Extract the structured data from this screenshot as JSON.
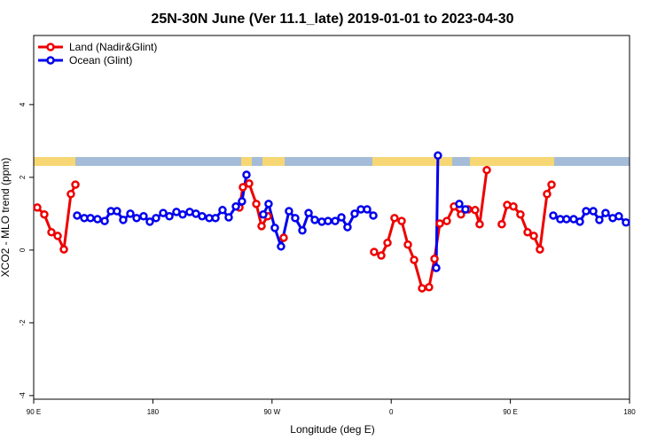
{
  "chart_data": {
    "type": "line",
    "title": "25N-30N June (Ver 11.1_late)   2019-01-01 to 2023-04-30",
    "x_label": "Longitude (deg E)",
    "y_label": "XCO2 - MLO trend (ppm)",
    "xlim": [
      90,
      540
    ],
    "xticks": [
      {
        "value": 90,
        "label": "90 E"
      },
      180,
      {
        "value": 270,
        "label": "90 W"
      },
      {
        "value": 360,
        "label": "0"
      },
      {
        "value": 450,
        "label": "90 E"
      },
      {
        "value": 540,
        "label": "180"
      }
    ],
    "ylim": [
      -4.1,
      5.9
    ],
    "yticks": [
      -4,
      -2,
      0,
      2,
      4
    ],
    "legend": "top-left",
    "series": [
      {
        "name": "Land (Nadir&Glint)",
        "color": "#ee0000",
        "x": [
          92.7,
          98.0,
          103.4,
          108.1,
          112.8,
          118.1,
          121.5,
          null,
          245.4,
          248.0,
          252.7,
          258.1,
          262.1,
          266.8,
          null,
          278.8,
          null,
          347.1,
          352.5,
          357.2,
          362.5,
          367.9,
          372.6,
          377.3,
          383.3,
          388.6,
          392.7,
          396.7,
          402.0,
          407.4,
          412.7,
          418.1,
          423.4,
          426.8,
          432.2,
          null,
          443.5,
          447.6,
          452.3,
          457.6,
          463.0,
          467.7,
          472.3,
          477.7,
          481.1
        ],
        "values": [
          1.17,
          0.98,
          0.49,
          0.39,
          0.02,
          1.54,
          1.8,
          null,
          1.17,
          1.73,
          1.83,
          1.27,
          0.66,
          0.93,
          null,
          0.34,
          null,
          -0.05,
          -0.15,
          0.2,
          0.88,
          0.8,
          0.15,
          -0.27,
          -1.05,
          -1.02,
          -0.24,
          0.73,
          0.8,
          1.2,
          0.98,
          1.12,
          1.1,
          0.71,
          2.2,
          null,
          0.71,
          1.24,
          1.2,
          0.98,
          0.49,
          0.39,
          0.02,
          1.54,
          1.8
        ]
      },
      {
        "name": "Ocean (Glint)",
        "color": "#0000ee",
        "x": [
          122.8,
          128.2,
          132.9,
          138.2,
          143.6,
          148.3,
          152.9,
          157.6,
          163.0,
          167.7,
          173.0,
          177.7,
          182.4,
          187.8,
          192.5,
          197.8,
          202.5,
          207.8,
          212.5,
          217.2,
          222.6,
          227.3,
          232.6,
          237.3,
          242.7,
          247.3,
          250.7,
          null,
          263.4,
          267.4,
          272.1,
          276.8,
          282.8,
          287.5,
          292.9,
          297.6,
          302.3,
          307.6,
          312.3,
          317.7,
          322.4,
          327.0,
          332.4,
          337.1,
          341.8,
          346.5,
          null,
          394.0,
          395.3,
          null,
          411.4,
          416.1,
          null,
          482.4,
          487.7,
          492.4,
          497.8,
          502.5,
          507.2,
          512.6,
          517.2,
          521.9,
          527.3,
          531.9,
          537.3
        ],
        "values": [
          0.95,
          0.88,
          0.88,
          0.85,
          0.8,
          1.07,
          1.07,
          0.83,
          1.0,
          0.88,
          0.93,
          0.78,
          0.88,
          1.02,
          0.93,
          1.05,
          0.98,
          1.05,
          1.0,
          0.93,
          0.88,
          0.88,
          1.1,
          0.9,
          1.2,
          1.34,
          2.07,
          null,
          0.98,
          1.27,
          0.61,
          0.1,
          1.07,
          0.88,
          0.54,
          1.02,
          0.83,
          0.78,
          0.8,
          0.8,
          0.9,
          0.63,
          1.0,
          1.12,
          1.12,
          0.95,
          null,
          -0.49,
          2.6,
          null,
          1.27,
          1.12,
          null,
          0.95,
          0.85,
          0.85,
          0.85,
          0.78,
          1.07,
          1.07,
          0.83,
          1.02,
          0.88,
          0.93,
          0.76
        ]
      }
    ]
  }
}
